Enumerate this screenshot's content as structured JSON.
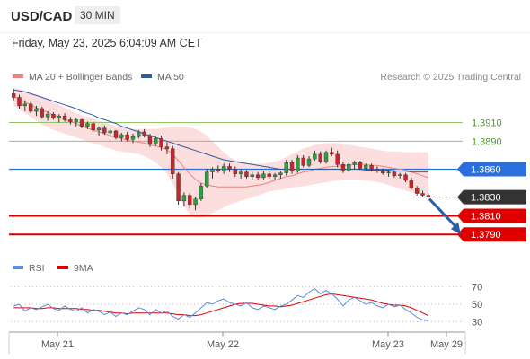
{
  "header": {
    "pair": "USD/CAD",
    "timeframe": "30 MIN"
  },
  "datetime": "Friday, May 23, 2025 6:04:09 AM CET",
  "legend": {
    "ma20_label": "MA 20 + Bollinger Bands",
    "ma50_label": "MA 50",
    "rsi_label": "RSI",
    "ma9_label": "9MA",
    "ma20_color": "#f08080",
    "ma50_color": "#2e5c9e",
    "rsi_color": "#5b8bd9",
    "ma9_color": "#e00000"
  },
  "credit": "Research © 2025 Trading Central",
  "chart_data": [
    {
      "type": "line",
      "price_levels": [
        {
          "label": "1.3910",
          "value": 1.391,
          "style": "resistance-light",
          "color": "#8fc46a"
        },
        {
          "label": "1.3890",
          "value": 1.389,
          "style": "resistance-light",
          "color": "#8fc46a"
        },
        {
          "label": "1.3860",
          "value": 1.386,
          "style": "pivot",
          "color": "#2a6fdb"
        },
        {
          "label": "1.3830",
          "value": 1.383,
          "style": "last-price",
          "color": "#333333"
        },
        {
          "label": "1.3810",
          "value": 1.381,
          "style": "support",
          "color": "#e00000"
        },
        {
          "label": "1.3790",
          "value": 1.379,
          "style": "support",
          "color": "#e00000"
        }
      ],
      "ylim": [
        1.377,
        1.395
      ],
      "x_ticks": [
        "May 21",
        "May 22",
        "May 23",
        "May 29"
      ],
      "series": [
        {
          "kind": "candles",
          "ohlc": [
            [
              1.3941,
              1.3946,
              1.3934,
              1.3937
            ],
            [
              1.3937,
              1.394,
              1.3925,
              1.3928
            ],
            [
              1.3928,
              1.3934,
              1.3922,
              1.393
            ],
            [
              1.393,
              1.3932,
              1.392,
              1.3922
            ],
            [
              1.3922,
              1.3928,
              1.3917,
              1.3925
            ],
            [
              1.3925,
              1.3927,
              1.3914,
              1.3916
            ],
            [
              1.3916,
              1.3922,
              1.3912,
              1.3919
            ],
            [
              1.3919,
              1.3921,
              1.3913,
              1.3915
            ],
            [
              1.3915,
              1.3919,
              1.391,
              1.3917
            ],
            [
              1.3917,
              1.392,
              1.3911,
              1.3913
            ],
            [
              1.3913,
              1.3916,
              1.3908,
              1.3911
            ],
            [
              1.3911,
              1.3915,
              1.3906,
              1.3913
            ],
            [
              1.3913,
              1.3914,
              1.3904,
              1.3906
            ],
            [
              1.3906,
              1.3911,
              1.3903,
              1.3909
            ],
            [
              1.3909,
              1.3911,
              1.39,
              1.3902
            ],
            [
              1.3902,
              1.3906,
              1.3896,
              1.3904
            ],
            [
              1.3904,
              1.3907,
              1.3897,
              1.3899
            ],
            [
              1.3899,
              1.3903,
              1.3894,
              1.3901
            ],
            [
              1.3901,
              1.3902,
              1.3892,
              1.3894
            ],
            [
              1.3894,
              1.3899,
              1.389,
              1.3897
            ],
            [
              1.3897,
              1.39,
              1.389,
              1.3892
            ],
            [
              1.3892,
              1.3898,
              1.3888,
              1.3895
            ],
            [
              1.3895,
              1.3902,
              1.3893,
              1.39
            ],
            [
              1.39,
              1.3903,
              1.3894,
              1.3896
            ],
            [
              1.3896,
              1.3898,
              1.3884,
              1.3887
            ],
            [
              1.3887,
              1.3895,
              1.3885,
              1.3893
            ],
            [
              1.3893,
              1.3896,
              1.388,
              1.3884
            ],
            [
              1.3884,
              1.3889,
              1.3876,
              1.3882
            ],
            [
              1.3882,
              1.3885,
              1.385,
              1.3855
            ],
            [
              1.3855,
              1.3857,
              1.3822,
              1.3826
            ],
            [
              1.3826,
              1.3835,
              1.382,
              1.3832
            ],
            [
              1.3832,
              1.3834,
              1.3818,
              1.3822
            ],
            [
              1.3822,
              1.383,
              1.3816,
              1.3828
            ],
            [
              1.3828,
              1.3845,
              1.3826,
              1.3842
            ],
            [
              1.3842,
              1.386,
              1.384,
              1.3857
            ],
            [
              1.3857,
              1.3862,
              1.385,
              1.386
            ],
            [
              1.386,
              1.3864,
              1.3856,
              1.3858
            ],
            [
              1.3858,
              1.3866,
              1.3855,
              1.3863
            ],
            [
              1.3863,
              1.3866,
              1.3857,
              1.386
            ],
            [
              1.386,
              1.3863,
              1.3852,
              1.3855
            ],
            [
              1.3855,
              1.386,
              1.385,
              1.3857
            ],
            [
              1.3857,
              1.3859,
              1.385,
              1.3852
            ],
            [
              1.3852,
              1.3857,
              1.3848,
              1.3854
            ],
            [
              1.3854,
              1.3857,
              1.3849,
              1.3851
            ],
            [
              1.3851,
              1.3858,
              1.3849,
              1.3855
            ],
            [
              1.3855,
              1.3858,
              1.385,
              1.3852
            ],
            [
              1.3852,
              1.3856,
              1.3849,
              1.3854
            ],
            [
              1.3854,
              1.3858,
              1.385,
              1.3856
            ],
            [
              1.3856,
              1.387,
              1.3853,
              1.3867
            ],
            [
              1.3867,
              1.387,
              1.3855,
              1.3858
            ],
            [
              1.3858,
              1.3875,
              1.3856,
              1.3872
            ],
            [
              1.3872,
              1.3875,
              1.3862,
              1.3864
            ],
            [
              1.3864,
              1.3874,
              1.3862,
              1.3871
            ],
            [
              1.3871,
              1.388,
              1.3869,
              1.3876
            ],
            [
              1.3876,
              1.3879,
              1.3866,
              1.3868
            ],
            [
              1.3868,
              1.388,
              1.3866,
              1.3878
            ],
            [
              1.3878,
              1.3883,
              1.3874,
              1.3876
            ],
            [
              1.3876,
              1.388,
              1.3862,
              1.3865
            ],
            [
              1.3865,
              1.3868,
              1.3856,
              1.3859
            ],
            [
              1.3859,
              1.3868,
              1.3857,
              1.3865
            ],
            [
              1.3865,
              1.3869,
              1.386,
              1.3867
            ],
            [
              1.3867,
              1.3869,
              1.3859,
              1.3861
            ],
            [
              1.3861,
              1.3866,
              1.3859,
              1.3864
            ],
            [
              1.3864,
              1.3866,
              1.3858,
              1.386
            ],
            [
              1.386,
              1.3863,
              1.3856,
              1.3858
            ],
            [
              1.3858,
              1.3861,
              1.3854,
              1.3856
            ],
            [
              1.3856,
              1.3859,
              1.3852,
              1.3857
            ],
            [
              1.3857,
              1.3859,
              1.3851,
              1.3853
            ],
            [
              1.3853,
              1.3856,
              1.385,
              1.3854
            ],
            [
              1.3854,
              1.3856,
              1.3846,
              1.3848
            ],
            [
              1.3848,
              1.3851,
              1.3838,
              1.384
            ],
            [
              1.384,
              1.3842,
              1.3832,
              1.3834
            ],
            [
              1.3834,
              1.3837,
              1.383,
              1.3832
            ],
            [
              1.3832,
              1.3834,
              1.3829,
              1.383
            ]
          ]
        },
        {
          "name": "MA 20",
          "values": [
            1.3938,
            1.3935,
            1.3932,
            1.3929,
            1.3926,
            1.3923,
            1.3921,
            1.3918,
            1.3916,
            1.3913,
            1.3911,
            1.3909,
            1.3906,
            1.3904,
            1.3902,
            1.39,
            1.3898,
            1.3896,
            1.3894,
            1.3893,
            1.3891,
            1.389,
            1.3889,
            1.3888,
            1.3886,
            1.3885,
            1.3883,
            1.3881,
            1.3876,
            1.3869,
            1.3862,
            1.3855,
            1.3849,
            1.3845,
            1.3843,
            1.3842,
            1.3841,
            1.3841,
            1.3841,
            1.3841,
            1.3841,
            1.3841,
            1.3842,
            1.3843,
            1.3844,
            1.3846,
            1.3848,
            1.385,
            1.3852,
            1.3853,
            1.3855,
            1.3857,
            1.3858,
            1.386,
            1.3861,
            1.3862,
            1.3863,
            1.3863,
            1.3864,
            1.3864,
            1.3865,
            1.3865,
            1.3865,
            1.3864,
            1.3864,
            1.3863,
            1.3862,
            1.3861,
            1.386,
            1.3859,
            1.3857,
            1.3855,
            1.3853,
            1.3851
          ]
        },
        {
          "name": "Bollinger Upper",
          "values": [
            1.3948,
            1.3946,
            1.3944,
            1.3942,
            1.394,
            1.3938,
            1.3935,
            1.3932,
            1.3929,
            1.3926,
            1.3923,
            1.392,
            1.3918,
            1.3916,
            1.3914,
            1.3912,
            1.391,
            1.3908,
            1.3906,
            1.3905,
            1.3904,
            1.3903,
            1.3903,
            1.3903,
            1.3903,
            1.3903,
            1.3904,
            1.3905,
            1.3906,
            1.3906,
            1.3906,
            1.3905,
            1.3903,
            1.39,
            1.3896,
            1.389,
            1.3884,
            1.3878,
            1.3873,
            1.387,
            1.3868,
            1.3867,
            1.3866,
            1.3866,
            1.3866,
            1.3867,
            1.3868,
            1.387,
            1.3873,
            1.3876,
            1.3879,
            1.3882,
            1.3884,
            1.3886,
            1.3887,
            1.3888,
            1.3888,
            1.3888,
            1.3887,
            1.3886,
            1.3885,
            1.3884,
            1.3883,
            1.3882,
            1.3881,
            1.388,
            1.3879,
            1.3879,
            1.3879,
            1.3878,
            1.3878,
            1.3878,
            1.3878,
            1.3878
          ]
        },
        {
          "name": "Bollinger Lower",
          "values": [
            1.3928,
            1.3924,
            1.392,
            1.3916,
            1.3912,
            1.3908,
            1.3905,
            1.3902,
            1.39,
            1.3898,
            1.3896,
            1.3894,
            1.3892,
            1.389,
            1.3888,
            1.3886,
            1.3884,
            1.3882,
            1.388,
            1.3879,
            1.3878,
            1.3877,
            1.3876,
            1.3874,
            1.3871,
            1.3867,
            1.3862,
            1.3855,
            1.3845,
            1.3832,
            1.382,
            1.3812,
            1.3808,
            1.3808,
            1.381,
            1.3813,
            1.3816,
            1.3819,
            1.3822,
            1.3824,
            1.3826,
            1.3828,
            1.383,
            1.3832,
            1.3834,
            1.3836,
            1.3837,
            1.3838,
            1.3839,
            1.384,
            1.3841,
            1.3842,
            1.3843,
            1.3844,
            1.3845,
            1.3846,
            1.3847,
            1.3848,
            1.3849,
            1.3849,
            1.3849,
            1.3849,
            1.3848,
            1.3847,
            1.3846,
            1.3845,
            1.3843,
            1.3841,
            1.3839,
            1.3837,
            1.3835,
            1.3834,
            1.3833,
            1.3832
          ]
        },
        {
          "name": "MA 50",
          "values": [
            1.3945,
            1.3944,
            1.3943,
            1.3941,
            1.3939,
            1.3937,
            1.3935,
            1.3933,
            1.3931,
            1.3929,
            1.3927,
            1.3925,
            1.3922,
            1.392,
            1.3918,
            1.3915,
            1.3913,
            1.3911,
            1.3909,
            1.3906,
            1.3904,
            1.3902,
            1.39,
            1.3898,
            1.3896,
            1.3894,
            1.3892,
            1.389,
            1.3888,
            1.3886,
            1.3884,
            1.3882,
            1.388,
            1.3878,
            1.3876,
            1.3874,
            1.3872,
            1.387,
            1.3869,
            1.3868,
            1.3867,
            1.3866,
            1.3865,
            1.3864,
            1.3863,
            1.3862,
            1.3861,
            1.386,
            1.386,
            1.386,
            1.386,
            1.386,
            1.386,
            1.386,
            1.386,
            1.386,
            1.386,
            1.386,
            1.386,
            1.386,
            1.386,
            1.386,
            1.3859,
            1.3859,
            1.3859,
            1.3859,
            1.3859,
            1.3858,
            1.3858,
            1.3858,
            1.3857,
            1.3857,
            1.3857,
            1.3857
          ]
        }
      ],
      "forecast": {
        "from": 1.383,
        "to": 1.379,
        "direction": "down"
      }
    },
    {
      "type": "line",
      "ylim": [
        20,
        80
      ],
      "y_ticks": [
        70,
        50,
        30
      ],
      "guide_levels": [
        70,
        50,
        30
      ],
      "series": [
        {
          "name": "RSI",
          "values": [
            48,
            50,
            42,
            46,
            44,
            47,
            50,
            45,
            43,
            48,
            44,
            42,
            46,
            40,
            44,
            42,
            38,
            41,
            36,
            40,
            38,
            42,
            46,
            44,
            38,
            44,
            40,
            42,
            36,
            33,
            38,
            35,
            40,
            46,
            52,
            50,
            54,
            56,
            52,
            50,
            48,
            52,
            46,
            44,
            48,
            46,
            44,
            48,
            50,
            55,
            60,
            58,
            64,
            68,
            62,
            66,
            62,
            56,
            48,
            55,
            58,
            54,
            50,
            52,
            48,
            46,
            50,
            47,
            49,
            44,
            40,
            35,
            32,
            31
          ]
        },
        {
          "name": "9MA",
          "values": [
            46,
            46,
            46,
            46,
            45,
            45,
            46,
            46,
            45,
            45,
            45,
            45,
            44,
            44,
            43,
            43,
            42,
            41,
            40,
            40,
            39,
            40,
            40,
            40,
            40,
            40,
            40,
            40,
            39,
            38,
            38,
            37,
            37,
            38,
            40,
            42,
            44,
            46,
            48,
            50,
            51,
            51,
            51,
            50,
            49,
            48,
            48,
            47,
            48,
            49,
            51,
            53,
            55,
            57,
            59,
            61,
            62,
            61,
            60,
            59,
            58,
            57,
            56,
            55,
            53,
            51,
            50,
            49,
            49,
            48,
            46,
            43,
            40,
            37
          ]
        }
      ],
      "x_ticks": [
        "May 21",
        "May 22",
        "May 23",
        "May 29"
      ]
    }
  ]
}
